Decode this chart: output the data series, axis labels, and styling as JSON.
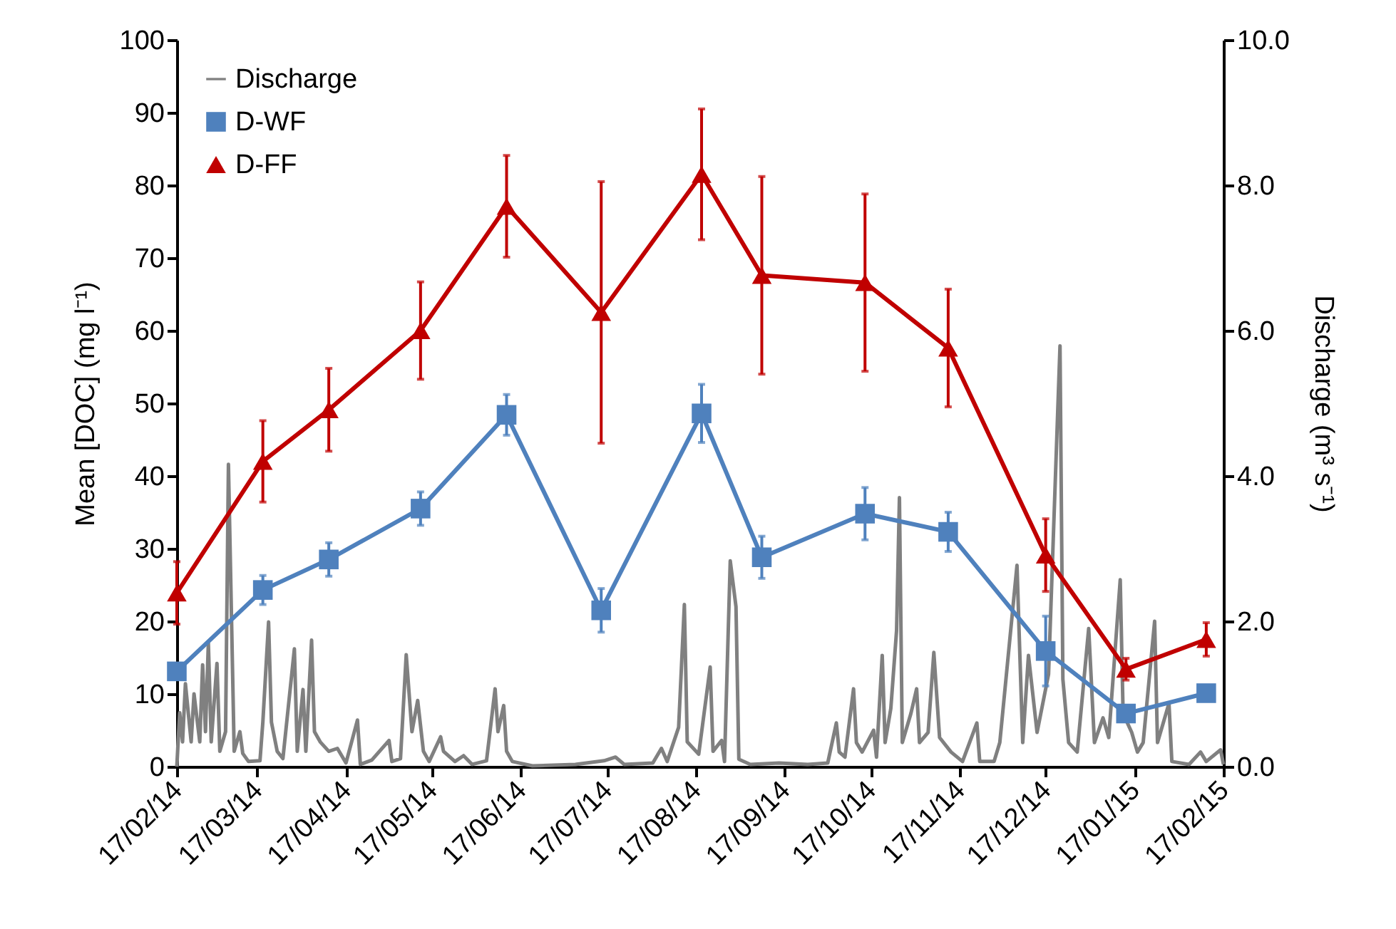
{
  "chart_data": {
    "type": "line",
    "ylabel": "Mean [DOC] (mg l⁻¹)",
    "y2label": "Discharge (m³ s⁻¹)",
    "xlim": [
      "2014-02-17",
      "2015-02-17"
    ],
    "xticks": [
      {
        "value": "2014-02-17",
        "label": "17/02/14"
      },
      {
        "value": "2014-03-17",
        "label": "17/03/14"
      },
      {
        "value": "2014-04-17",
        "label": "17/04/14"
      },
      {
        "value": "2014-05-17",
        "label": "17/05/14"
      },
      {
        "value": "2014-06-17",
        "label": "17/06/14"
      },
      {
        "value": "2014-07-17",
        "label": "17/07/14"
      },
      {
        "value": "2014-08-17",
        "label": "17/08/14"
      },
      {
        "value": "2014-09-17",
        "label": "17/09/14"
      },
      {
        "value": "2014-10-17",
        "label": "17/10/14"
      },
      {
        "value": "2014-11-17",
        "label": "17/11/14"
      },
      {
        "value": "2014-12-17",
        "label": "17/12/14"
      },
      {
        "value": "2015-01-17",
        "label": "17/01/15"
      },
      {
        "value": "2015-02-17",
        "label": "17/02/15"
      }
    ],
    "ylim": [
      0,
      100
    ],
    "yticks": [
      0,
      10,
      20,
      30,
      40,
      50,
      60,
      70,
      80,
      90,
      100
    ],
    "y2lim": [
      0,
      10
    ],
    "y2ticks": [
      {
        "value": 0,
        "label": "0.0"
      },
      {
        "value": 2,
        "label": "2.0"
      },
      {
        "value": 4,
        "label": "4.0"
      },
      {
        "value": 6,
        "label": "6.0"
      },
      {
        "value": 8,
        "label": "8.0"
      },
      {
        "value": 10,
        "label": "10.0"
      }
    ],
    "legend": "top left",
    "series": [
      {
        "name": "Discharge",
        "type": "line",
        "axis": "y2",
        "color": "#808080",
        "marker": "none",
        "x": [
          "2014-02-17",
          "2014-02-18",
          "2014-02-19",
          "2014-02-20",
          "2014-02-22",
          "2014-02-23",
          "2014-02-25",
          "2014-02-26",
          "2014-02-27",
          "2014-02-28",
          "2014-03-01",
          "2014-03-03",
          "2014-03-04",
          "2014-03-06",
          "2014-03-07",
          "2014-03-09",
          "2014-03-11",
          "2014-03-12",
          "2014-03-14",
          "2014-03-18",
          "2014-03-19",
          "2014-03-21",
          "2014-03-22",
          "2014-03-24",
          "2014-03-26",
          "2014-03-30",
          "2014-03-31",
          "2014-04-02",
          "2014-04-03",
          "2014-04-05",
          "2014-04-06",
          "2014-04-08",
          "2014-04-11",
          "2014-04-14",
          "2014-04-17",
          "2014-04-21",
          "2014-04-22",
          "2014-04-26",
          "2014-05-02",
          "2014-05-03",
          "2014-05-06",
          "2014-05-08",
          "2014-05-10",
          "2014-05-12",
          "2014-05-14",
          "2014-05-16",
          "2014-05-20",
          "2014-05-21",
          "2014-05-25",
          "2014-05-28",
          "2014-05-31",
          "2014-06-05",
          "2014-06-08",
          "2014-06-09",
          "2014-06-11",
          "2014-06-12",
          "2014-06-14",
          "2014-06-21",
          "2014-07-06",
          "2014-07-16",
          "2014-07-20",
          "2014-07-23",
          "2014-08-02",
          "2014-08-05",
          "2014-08-07",
          "2014-08-11",
          "2014-08-13",
          "2014-08-14",
          "2014-08-18",
          "2014-08-22",
          "2014-08-23",
          "2014-08-26",
          "2014-08-27",
          "2014-08-29",
          "2014-08-31",
          "2014-09-01",
          "2014-09-05",
          "2014-09-15",
          "2014-09-25",
          "2014-10-02",
          "2014-10-05",
          "2014-10-06",
          "2014-10-08",
          "2014-10-11",
          "2014-10-12",
          "2014-10-14",
          "2014-10-18",
          "2014-10-19",
          "2014-10-21",
          "2014-10-22",
          "2014-10-24",
          "2014-10-26",
          "2014-10-27",
          "2014-10-28",
          "2014-10-31",
          "2014-11-02",
          "2014-11-03",
          "2014-11-06",
          "2014-11-08",
          "2014-11-10",
          "2014-11-14",
          "2014-11-18",
          "2014-11-23",
          "2014-11-24",
          "2014-11-29",
          "2014-12-01",
          "2014-12-07",
          "2014-12-08",
          "2014-12-09",
          "2014-12-11",
          "2014-12-14",
          "2014-12-16",
          "2014-12-18",
          "2014-12-22",
          "2014-12-23",
          "2014-12-25",
          "2014-12-28",
          "2015-01-01",
          "2015-01-03",
          "2015-01-06",
          "2015-01-08",
          "2015-01-12",
          "2015-01-13",
          "2015-01-16",
          "2015-01-18",
          "2015-01-20",
          "2015-01-24",
          "2015-01-25",
          "2015-01-29",
          "2015-01-30",
          "2015-02-05",
          "2015-02-09",
          "2015-02-11",
          "2015-02-16",
          "2015-02-17"
        ],
        "values": [
          0,
          0.74,
          0.34,
          1.14,
          0.34,
          1.0,
          0.34,
          1.4,
          0.48,
          1.7,
          0.34,
          1.42,
          0.21,
          0.48,
          4.16,
          0.21,
          0.48,
          0.18,
          0.07,
          0.08,
          0.61,
          1.99,
          0.61,
          0.21,
          0.11,
          1.62,
          0.21,
          1.06,
          0.21,
          1.74,
          0.48,
          0.34,
          0.21,
          0.25,
          0.05,
          0.64,
          0.03,
          0.09,
          0.36,
          0.07,
          0.11,
          1.54,
          0.48,
          0.91,
          0.21,
          0.07,
          0.41,
          0.21,
          0.07,
          0.15,
          0.03,
          0.08,
          1.07,
          0.48,
          0.84,
          0.21,
          0.07,
          0.01,
          0.03,
          0.08,
          0.13,
          0.03,
          0.05,
          0.25,
          0.07,
          0.54,
          2.23,
          0.34,
          0.17,
          1.37,
          0.21,
          0.36,
          0.07,
          2.83,
          2.2,
          0.1,
          0.03,
          0.05,
          0.03,
          0.05,
          0.6,
          0.2,
          0.13,
          1.07,
          0.33,
          0.2,
          0.5,
          0.13,
          1.53,
          0.33,
          0.8,
          1.87,
          3.7,
          0.33,
          0.73,
          1.07,
          0.33,
          0.47,
          1.57,
          0.4,
          0.2,
          0.07,
          0.6,
          0.07,
          0.07,
          0.33,
          2.77,
          1.53,
          0.33,
          1.53,
          0.47,
          0.87,
          1.27,
          5.79,
          1.2,
          0.33,
          0.2,
          1.9,
          0.33,
          0.67,
          0.4,
          2.57,
          0.73,
          0.47,
          0.2,
          0.33,
          2.0,
          0.33,
          0.87,
          0.07,
          0.03,
          0.2,
          0.07,
          0.23,
          0.03
        ]
      },
      {
        "name": "D-WF",
        "color": "#4f81bd",
        "marker": "square",
        "x": [
          "2014-02-17",
          "2014-03-19",
          "2014-04-11",
          "2014-05-13",
          "2014-06-12",
          "2014-07-15",
          "2014-08-19",
          "2014-09-09",
          "2014-10-15",
          "2014-11-13",
          "2014-12-17",
          "2015-01-14",
          "2015-02-11"
        ],
        "values": [
          13.1,
          24.3,
          28.5,
          35.5,
          48.4,
          21.5,
          48.6,
          28.8,
          34.8,
          32.3,
          15.9,
          7.3,
          10.1
        ],
        "errors": [
          null,
          2,
          2.3,
          2.3,
          2.8,
          3,
          4,
          2.9,
          3.6,
          2.7,
          4.8,
          null,
          null
        ]
      },
      {
        "name": "D-FF",
        "color": "#c00000",
        "marker": "triangle",
        "x": [
          "2014-02-17",
          "2014-03-19",
          "2014-04-11",
          "2014-05-13",
          "2014-06-12",
          "2014-07-15",
          "2014-08-19",
          "2014-09-09",
          "2014-10-15",
          "2014-11-13",
          "2014-12-17",
          "2015-01-14",
          "2015-02-11"
        ],
        "values": [
          23.9,
          42.0,
          49.1,
          60.0,
          77.1,
          62.5,
          81.5,
          67.6,
          66.6,
          57.6,
          29.1,
          13.4,
          17.5
        ],
        "errors": [
          4.3,
          5.6,
          5.7,
          6.7,
          7,
          18,
          9,
          13.6,
          12.2,
          8.1,
          5,
          1.5,
          2.3
        ]
      }
    ]
  }
}
